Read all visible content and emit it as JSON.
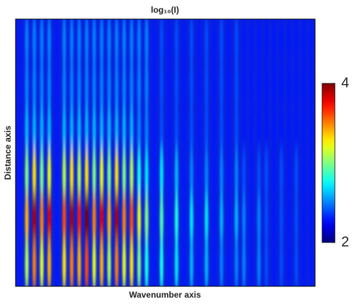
{
  "chart_data": {
    "type": "heatmap",
    "title": "log₁₀(I)",
    "xlabel": "Wavenumber axis",
    "ylabel": "Distance axis",
    "colormap": "jet",
    "zlim": [
      2,
      4
    ],
    "zticks": [
      2,
      4
    ],
    "z": [
      [
        2.3,
        2.5,
        2.5,
        2.5,
        2.5,
        2.3,
        2.5,
        2.5,
        2.5,
        2.5,
        2.5,
        2.5,
        2.5,
        2.5,
        2.5,
        2.5,
        2.5,
        2.5,
        2.3,
        2.4,
        2.3,
        2.4,
        2.3,
        2.4,
        2.3,
        2.4,
        2.3,
        2.4,
        2.3,
        2.4,
        2.3,
        2.3,
        2.3,
        2.3,
        2.3,
        2.3,
        2.3,
        2.3,
        2.3,
        2.3
      ],
      [
        2.3,
        2.5,
        2.5,
        2.5,
        2.5,
        2.3,
        2.5,
        2.5,
        2.5,
        2.5,
        2.5,
        2.5,
        2.5,
        2.5,
        2.5,
        2.5,
        2.5,
        2.5,
        2.3,
        2.4,
        2.3,
        2.4,
        2.3,
        2.4,
        2.3,
        2.4,
        2.3,
        2.4,
        2.3,
        2.4,
        2.3,
        2.3,
        2.3,
        2.3,
        2.3,
        2.3,
        2.3,
        2.3,
        2.3,
        2.3
      ],
      [
        2.3,
        2.6,
        2.6,
        2.6,
        2.6,
        2.3,
        2.6,
        2.6,
        2.6,
        2.6,
        2.6,
        2.6,
        2.6,
        2.6,
        2.6,
        2.6,
        2.5,
        2.5,
        2.3,
        2.4,
        2.3,
        2.4,
        2.3,
        2.4,
        2.3,
        2.4,
        2.3,
        2.4,
        2.3,
        2.4,
        2.3,
        2.3,
        2.3,
        2.3,
        2.3,
        2.3,
        2.3,
        2.3,
        2.3,
        2.3
      ],
      [
        2.3,
        3.0,
        3.3,
        3.0,
        3.2,
        2.3,
        3.1,
        3.3,
        3.1,
        3.3,
        3.0,
        3.2,
        3.0,
        3.3,
        3.0,
        3.1,
        2.8,
        2.7,
        2.3,
        2.7,
        2.3,
        2.6,
        2.3,
        2.5,
        2.3,
        2.5,
        2.3,
        2.5,
        2.3,
        2.5,
        2.4,
        2.3,
        2.4,
        2.4,
        2.3,
        2.4,
        2.3,
        2.4,
        2.3,
        2.3
      ],
      [
        2.3,
        3.4,
        3.9,
        3.5,
        3.8,
        2.3,
        3.6,
        3.9,
        3.7,
        4.0,
        3.5,
        3.8,
        3.4,
        3.9,
        3.5,
        3.6,
        3.2,
        3.0,
        2.3,
        2.9,
        2.3,
        2.8,
        2.3,
        2.7,
        2.3,
        2.7,
        2.3,
        2.6,
        2.3,
        2.6,
        2.5,
        2.3,
        2.5,
        2.4,
        2.3,
        2.4,
        2.3,
        2.4,
        2.3,
        2.3
      ],
      [
        2.3,
        3.1,
        3.5,
        3.2,
        3.4,
        2.3,
        3.3,
        3.5,
        3.4,
        3.6,
        3.2,
        3.4,
        3.1,
        3.5,
        3.2,
        3.3,
        3.0,
        2.8,
        2.3,
        2.8,
        2.3,
        2.7,
        2.3,
        2.6,
        2.3,
        2.6,
        2.3,
        2.5,
        2.3,
        2.5,
        2.5,
        2.3,
        2.5,
        2.4,
        2.3,
        2.4,
        2.3,
        2.4,
        2.3,
        2.3
      ]
    ]
  }
}
